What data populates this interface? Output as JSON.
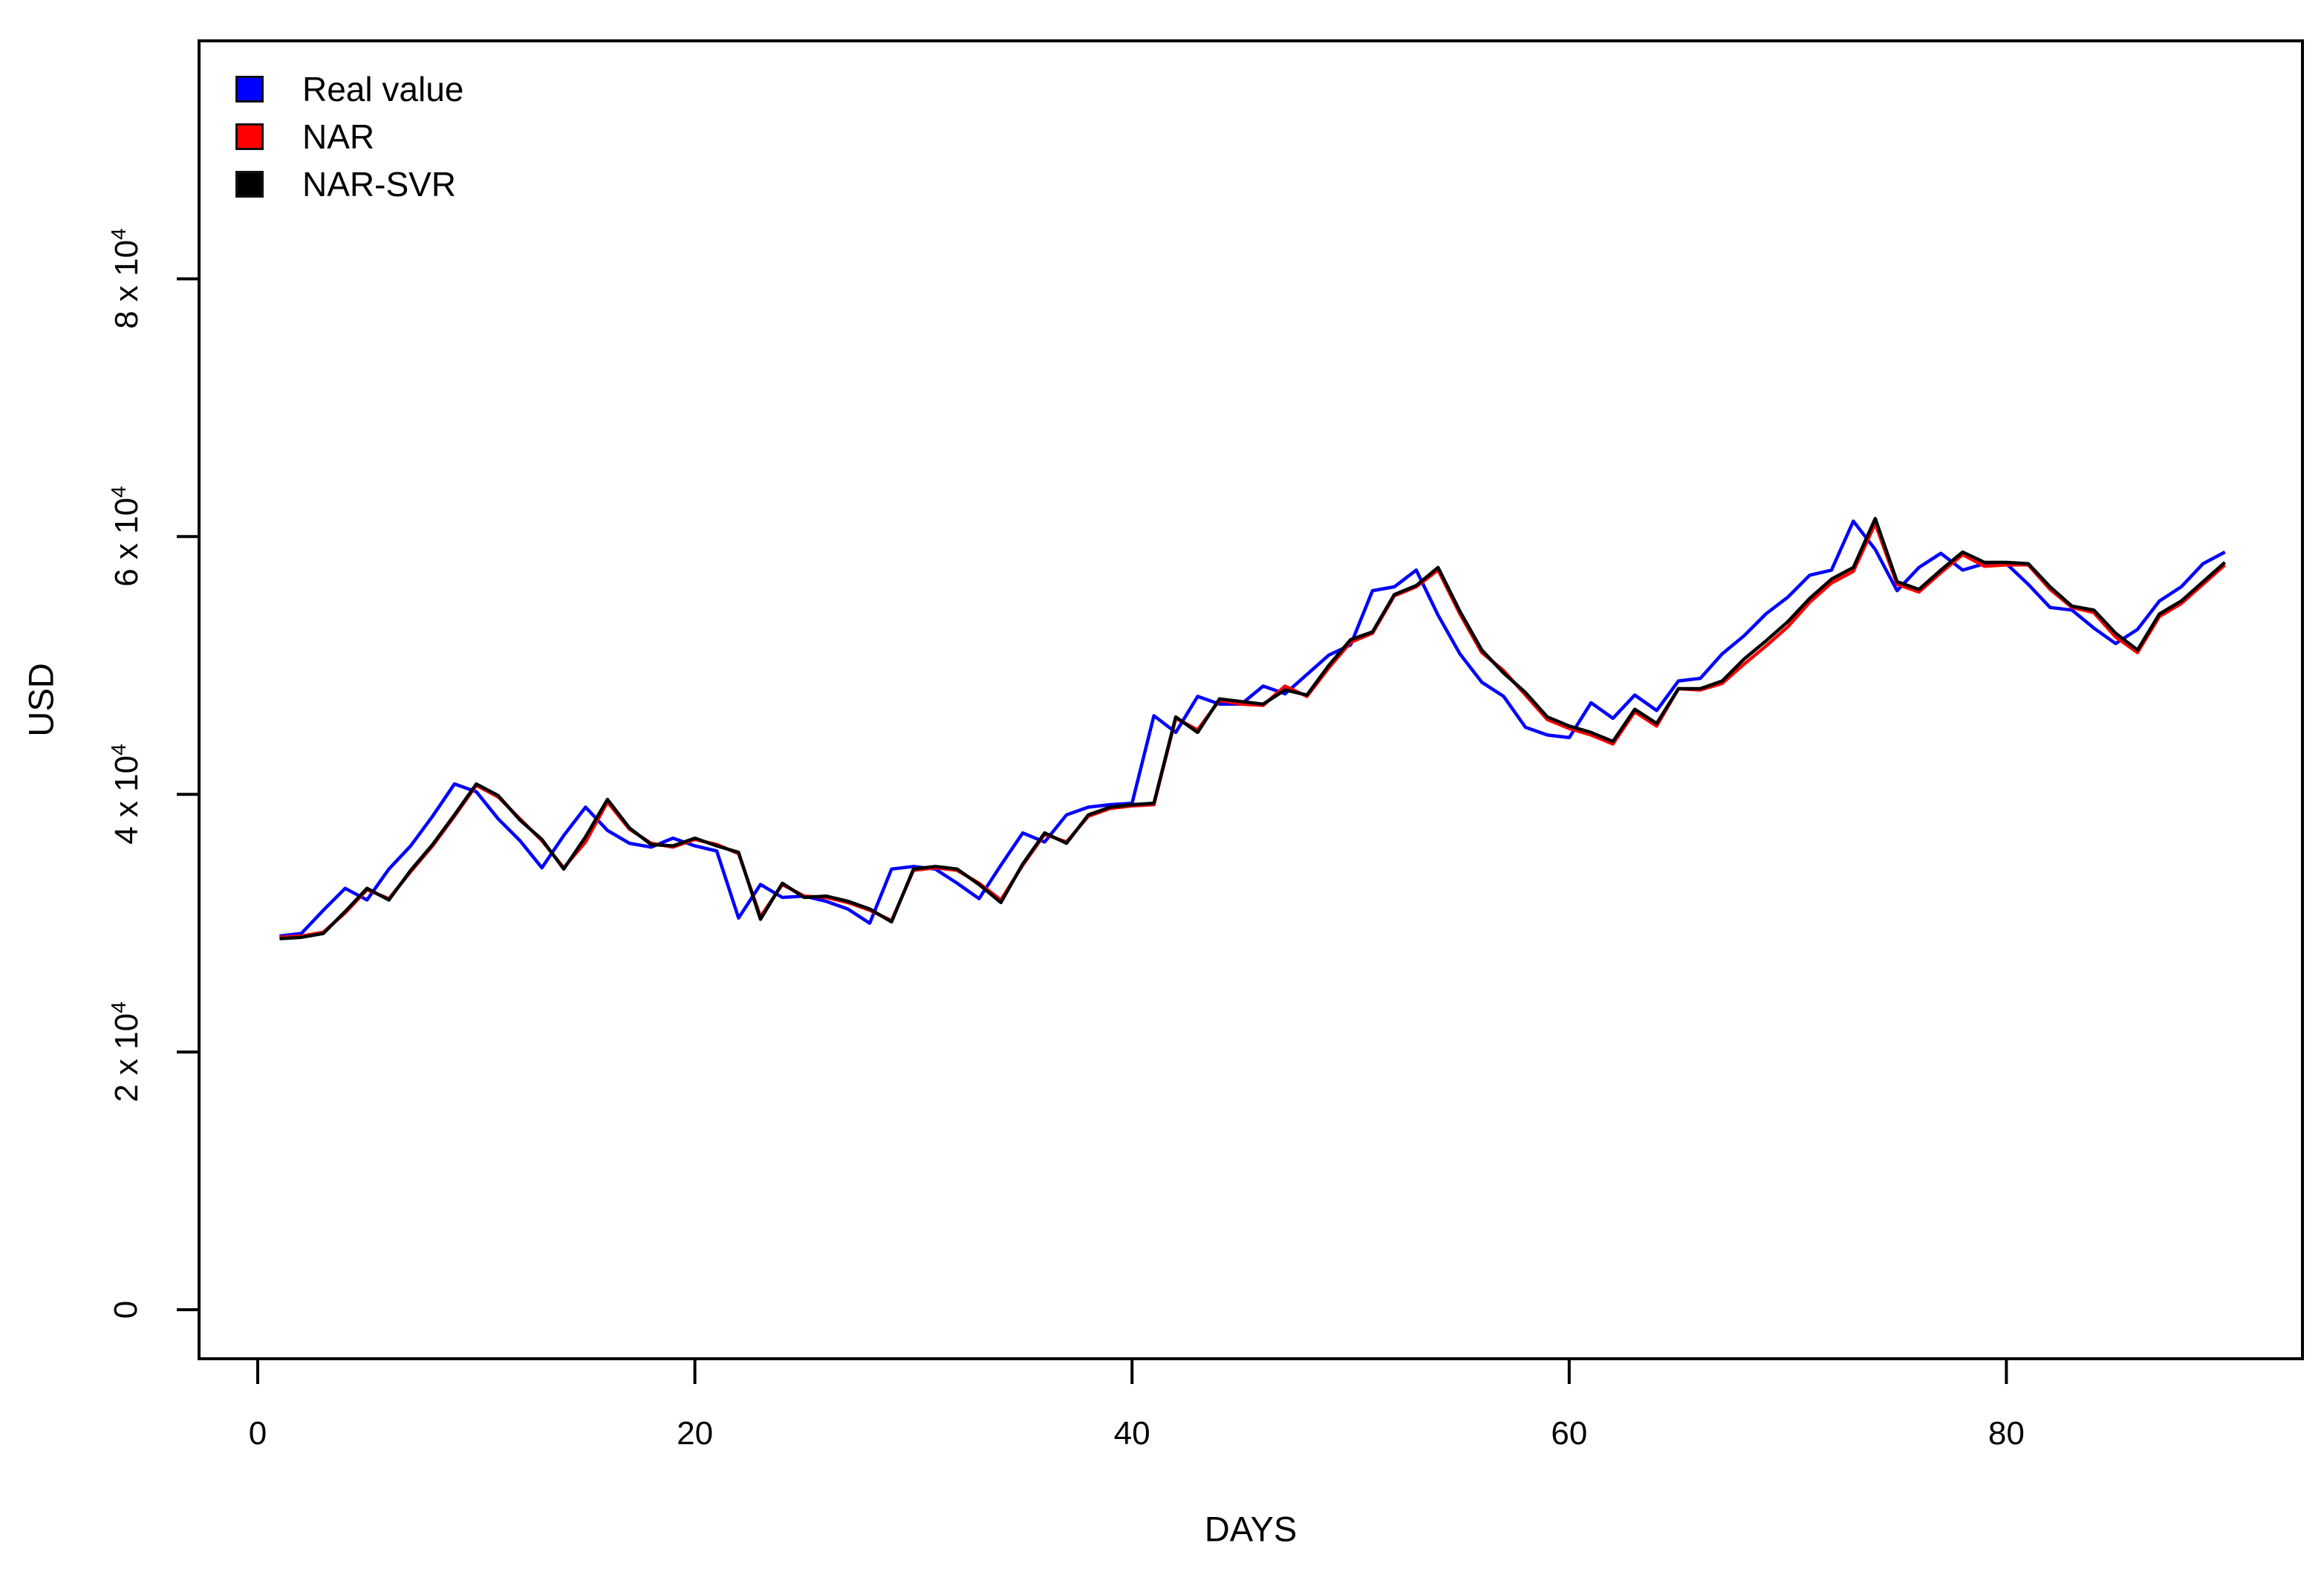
{
  "chart_data": {
    "type": "line",
    "title": "",
    "xlabel": "DAYS",
    "ylabel": "USD",
    "legend_position": "top-left",
    "grid": false,
    "x_start": 1,
    "x_step": 1,
    "xlim": [
      -2.684,
      93.546
    ],
    "ylim": [
      -3804,
      98470
    ],
    "x_ticks": [
      {
        "value": 0,
        "label": "0"
      },
      {
        "value": 20,
        "label": "20"
      },
      {
        "value": 40,
        "label": "40"
      },
      {
        "value": 60,
        "label": "60"
      },
      {
        "value": 80,
        "label": "80"
      }
    ],
    "y_ticks": [
      {
        "value": 0,
        "base": "0",
        "sup": ""
      },
      {
        "value": 20000,
        "base": "2 x 10",
        "sup": "4"
      },
      {
        "value": 40000,
        "base": "4 x 10",
        "sup": "4"
      },
      {
        "value": 60000,
        "base": "6 x 10",
        "sup": "4"
      },
      {
        "value": 80000,
        "base": "8 x 10",
        "sup": "4"
      }
    ],
    "series": [
      {
        "name": "Real value",
        "color": "#0000ff",
        "values": [
          29000,
          29200,
          31000,
          32700,
          31800,
          34200,
          36000,
          38300,
          40800,
          40200,
          38100,
          36400,
          34300,
          36800,
          39000,
          37200,
          36200,
          35900,
          36600,
          36000,
          35600,
          30400,
          33000,
          32000,
          32100,
          31700,
          31100,
          30000,
          34200,
          34400,
          34200,
          33100,
          31900,
          34500,
          37000,
          36300,
          38400,
          39000,
          39200,
          39300,
          46100,
          44800,
          47600,
          47000,
          47000,
          48400,
          47800,
          49300,
          50800,
          51600,
          55800,
          56100,
          57400,
          53900,
          50900,
          48700,
          47600,
          45200,
          44600,
          44400,
          47100,
          45900,
          47700,
          46500,
          48800,
          49000,
          50900,
          52300,
          54000,
          55300,
          57000,
          57400,
          61200,
          59000,
          55800,
          57600,
          58700,
          57400,
          57900,
          57900,
          56300,
          54500,
          54300,
          52900,
          51700,
          52800,
          55000,
          56100,
          57900,
          58800
        ]
      },
      {
        "name": "NAR",
        "color": "#ff0000",
        "values": [
          28900,
          29000,
          29300,
          30800,
          32600,
          31900,
          34000,
          36000,
          38300,
          40700,
          39800,
          38100,
          36400,
          34300,
          36300,
          39400,
          37300,
          36200,
          35900,
          36500,
          36100,
          35400,
          30500,
          33000,
          32100,
          32000,
          31600,
          31000,
          30200,
          34100,
          34300,
          34100,
          33100,
          31800,
          34500,
          36900,
          36300,
          38300,
          38900,
          39100,
          39200,
          45900,
          45000,
          47300,
          47000,
          46900,
          48400,
          47600,
          49800,
          51800,
          52500,
          55400,
          56100,
          57400,
          54000,
          51000,
          49600,
          47700,
          45800,
          45100,
          44600,
          43900,
          46400,
          45300,
          48200,
          48100,
          48600,
          50100,
          51500,
          53000,
          54900,
          56400,
          57300,
          61000,
          56300,
          55700,
          57200,
          58600,
          57700,
          57800,
          57800,
          55900,
          54500,
          54100,
          52200,
          51000,
          53800,
          54800,
          56300,
          57800
        ]
      },
      {
        "name": "NAR-SVR",
        "color": "#000000",
        "values": [
          28800,
          28900,
          29200,
          30900,
          32700,
          31800,
          34100,
          36100,
          38400,
          40800,
          39900,
          38000,
          36500,
          34200,
          36700,
          39600,
          37400,
          36100,
          36000,
          36600,
          36000,
          35500,
          30300,
          33100,
          32000,
          32100,
          31700,
          31100,
          30100,
          34200,
          34400,
          34200,
          33000,
          31600,
          34600,
          37000,
          36200,
          38400,
          39000,
          39200,
          39300,
          46000,
          44800,
          47400,
          47200,
          47000,
          48100,
          47700,
          50000,
          52000,
          52600,
          55500,
          56200,
          57600,
          54200,
          51200,
          49400,
          47900,
          46000,
          45300,
          44800,
          44100,
          46600,
          45500,
          48200,
          48200,
          48800,
          50500,
          51900,
          53400,
          55200,
          56700,
          57600,
          61400,
          56500,
          55900,
          57400,
          58800,
          58000,
          58000,
          57900,
          56100,
          54600,
          54300,
          52500,
          51200,
          54000,
          55000,
          56500,
          58000
        ]
      }
    ]
  }
}
